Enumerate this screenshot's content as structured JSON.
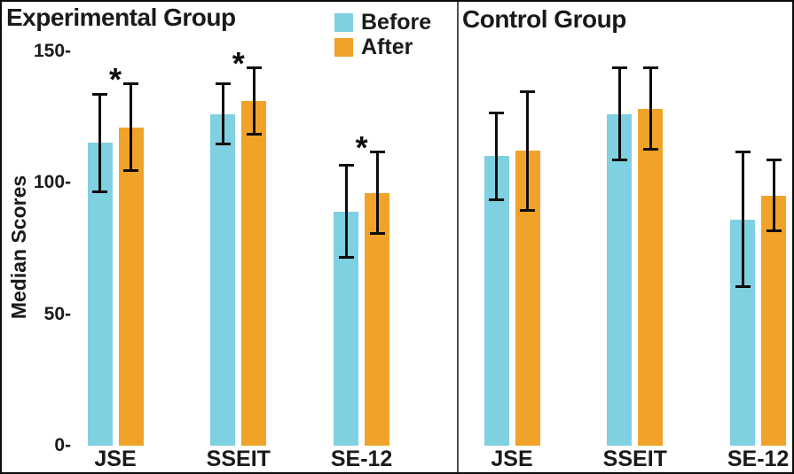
{
  "figure": {
    "background": "#ffffff",
    "border_color": "#0a0a0a",
    "divider_color": "#4d4d4d",
    "text_color": "#1a1a1a"
  },
  "chart_data": {
    "type": "bar",
    "ylabel": "Median Scores",
    "ylim": [
      0,
      150
    ],
    "grid": false,
    "legend_position": "top-center",
    "yticks": [
      {
        "value": 150,
        "label": "150-"
      },
      {
        "value": 100,
        "label": "100-"
      },
      {
        "value": 50,
        "label": "50-"
      },
      {
        "value": 0,
        "label": "0-"
      }
    ],
    "legend": [
      {
        "label": "Before",
        "color": "#7fd0e1"
      },
      {
        "label": "After",
        "color": "#f0a328"
      }
    ],
    "panels": [
      {
        "title": "Experimental Group",
        "categories": [
          "JSE",
          "SSEIT",
          "SE-12"
        ],
        "significance": [
          "*",
          "*",
          "*"
        ],
        "series": [
          {
            "name": "Before",
            "color": "#7fd0e1",
            "values": [
              115,
              126,
              89
            ],
            "err_low": [
              96,
              114,
              71
            ],
            "err_high": [
              134,
              138,
              107
            ]
          },
          {
            "name": "After",
            "color": "#f0a328",
            "values": [
              121,
              131,
              96
            ],
            "err_low": [
              104,
              118,
              80
            ],
            "err_high": [
              138,
              144,
              112
            ]
          }
        ]
      },
      {
        "title": "Control Group",
        "categories": [
          "JSE",
          "SSEIT",
          "SE-12"
        ],
        "significance": [
          "",
          "",
          ""
        ],
        "series": [
          {
            "name": "Before",
            "color": "#7fd0e1",
            "values": [
              110,
              126,
              86
            ],
            "err_low": [
              93,
              108,
              60
            ],
            "err_high": [
              127,
              144,
              112
            ]
          },
          {
            "name": "After",
            "color": "#f0a328",
            "values": [
              112,
              128,
              95
            ],
            "err_low": [
              89,
              112,
              81
            ],
            "err_high": [
              135,
              144,
              109
            ]
          }
        ]
      }
    ]
  }
}
